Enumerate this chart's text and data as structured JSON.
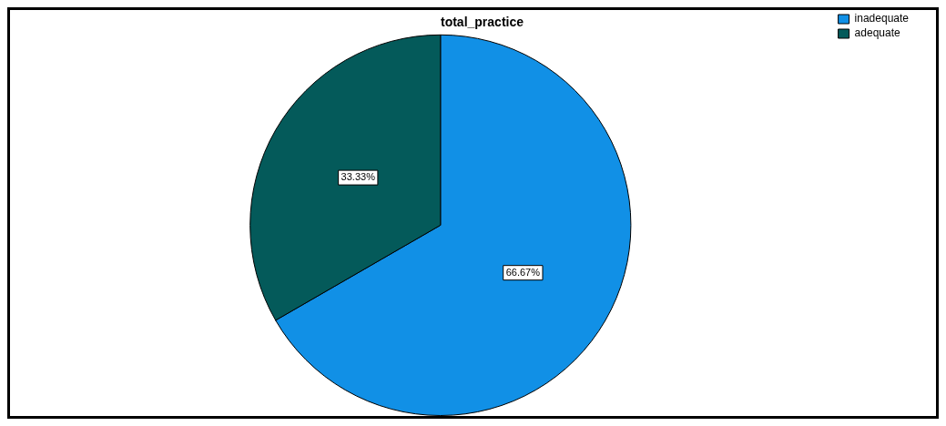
{
  "chart_data": {
    "type": "pie",
    "title": "total_practice",
    "categories": [
      "inadequate",
      "adequate"
    ],
    "values": [
      66.67,
      33.33
    ],
    "colors": [
      "#1190e6",
      "#045a5a"
    ],
    "value_labels": [
      "66.67%",
      "33.33%"
    ],
    "legend": "top right"
  }
}
